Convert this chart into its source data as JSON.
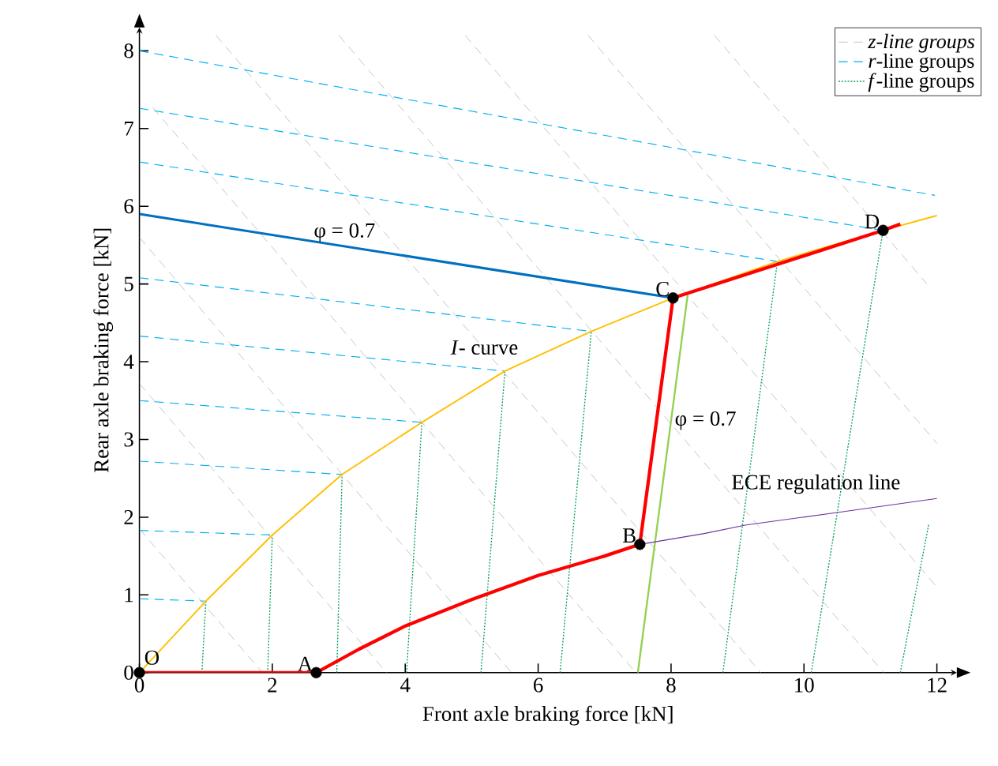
{
  "chart_data": {
    "type": "line",
    "xlabel": "Front axle braking force [kN]",
    "ylabel": "Rear axle braking force [kN]",
    "xlim": [
      0,
      12.3
    ],
    "ylim": [
      0,
      8.3
    ],
    "xticks": [
      0,
      2,
      4,
      6,
      8,
      10,
      12
    ],
    "yticks": [
      0,
      1,
      2,
      3,
      4,
      5,
      6,
      7,
      8
    ],
    "grid": false,
    "legend": "top right",
    "series": [
      {
        "name": "*z-line groups*",
        "color": "#b4b4b4",
        "line_style": "dashed",
        "x": [
          0,
          1.85,
          null,
          0,
          3.72,
          null,
          0,
          5.6,
          null,
          0.2,
          7.47,
          null,
          1.15,
          9.35,
          null,
          3.0,
          11.2,
          null,
          4.9,
          12,
          null,
          6.75,
          12,
          null,
          8.65,
          11.85
        ],
        "values": [
          1.85,
          0,
          null,
          3.72,
          0,
          null,
          5.6,
          0,
          null,
          7.27,
          0,
          null,
          8.2,
          0,
          null,
          8.2,
          0,
          null,
          8.2,
          1.1,
          null,
          8.2,
          2.95,
          null,
          8.2,
          5.0
        ]
      },
      {
        "name": "*r*-line groups",
        "color": "#00b0f0",
        "line_style": "dashed",
        "x": [
          0,
          1,
          null,
          0,
          2,
          null,
          0,
          3.05,
          null,
          0,
          4.25,
          null,
          0,
          5.5,
          null,
          0,
          6.8,
          null,
          0,
          9.6,
          null,
          0,
          11.19,
          null,
          0,
          11.97
        ],
        "values": [
          0.95,
          0.92,
          null,
          1.83,
          1.77,
          null,
          2.72,
          2.55,
          null,
          3.5,
          3.22,
          null,
          4.33,
          3.88,
          null,
          5.08,
          4.39,
          null,
          6.57,
          5.29,
          null,
          7.26,
          5.69,
          null,
          8.0,
          6.14
        ]
      },
      {
        "name": "*f*-line groups",
        "color": "#00a050",
        "line_style": "dotted",
        "x": [
          0.94,
          1,
          null,
          1.93,
          2,
          null,
          2.97,
          3.05,
          null,
          4.02,
          4.25,
          null,
          5.14,
          5.5,
          null,
          6.33,
          6.8,
          null,
          8.78,
          9.6,
          null,
          10.11,
          11.19,
          null,
          11.45,
          11.88
        ],
        "values": [
          0,
          0.92,
          null,
          0,
          1.77,
          null,
          0,
          2.55,
          null,
          0,
          3.22,
          null,
          0,
          3.88,
          null,
          0,
          4.39,
          null,
          0,
          5.29,
          null,
          0,
          5.69,
          null,
          0,
          1.92
        ]
      },
      {
        "color": "#ffc000",
        "line_style": "solid",
        "x": [
          0,
          1,
          2,
          3.05,
          4.25,
          5.5,
          6.8,
          8.03,
          9.6,
          11.19,
          12
        ],
        "values": [
          0,
          0.92,
          1.77,
          2.55,
          3.22,
          3.88,
          4.39,
          4.82,
          5.29,
          5.69,
          5.88
        ]
      },
      {
        "color": "#0070c0",
        "line_style": "solid",
        "x": [
          0,
          8.03
        ],
        "values": [
          5.9,
          4.82
        ]
      },
      {
        "color": "#92d050",
        "line_style": "solid",
        "x": [
          7.5,
          8.25
        ],
        "values": [
          0,
          4.86
        ]
      },
      {
        "color": "#7030a0",
        "line_style": "solid",
        "x": [
          7.53,
          8.5,
          9.13,
          10.5,
          12
        ],
        "values": [
          1.65,
          1.79,
          1.9,
          2.06,
          2.24
        ]
      },
      {
        "color": "#ff0000",
        "line_style": "solid",
        "x": [
          0,
          2.66,
          3.3,
          4,
          5,
          6,
          7,
          7.53,
          8.03,
          11.19,
          11.45
        ],
        "values": [
          0,
          0,
          0.3,
          0.6,
          0.94,
          1.25,
          1.5,
          1.65,
          4.82,
          5.69,
          5.77
        ]
      },
      {
        "type": "scatter",
        "color": "#000000",
        "marker": "circle",
        "x": [
          0,
          2.66,
          7.53,
          8.03,
          11.19
        ],
        "values": [
          0,
          0,
          1.65,
          4.82,
          5.69
        ],
        "value_labels": [
          "O",
          "A",
          "B",
          "C",
          "D"
        ]
      }
    ],
    "annotations": [
      {
        "text": "φ = 0.7",
        "x": 3.6,
        "y": 5.42
      },
      {
        "text": "φ = 0.7",
        "x": 7.96,
        "y": 3.0
      },
      {
        "text": "ECE regulation line",
        "x": 11.5,
        "y": 2.18
      },
      {
        "text": "*I*- curve",
        "x": 5.75,
        "y": 3.97
      }
    ]
  }
}
